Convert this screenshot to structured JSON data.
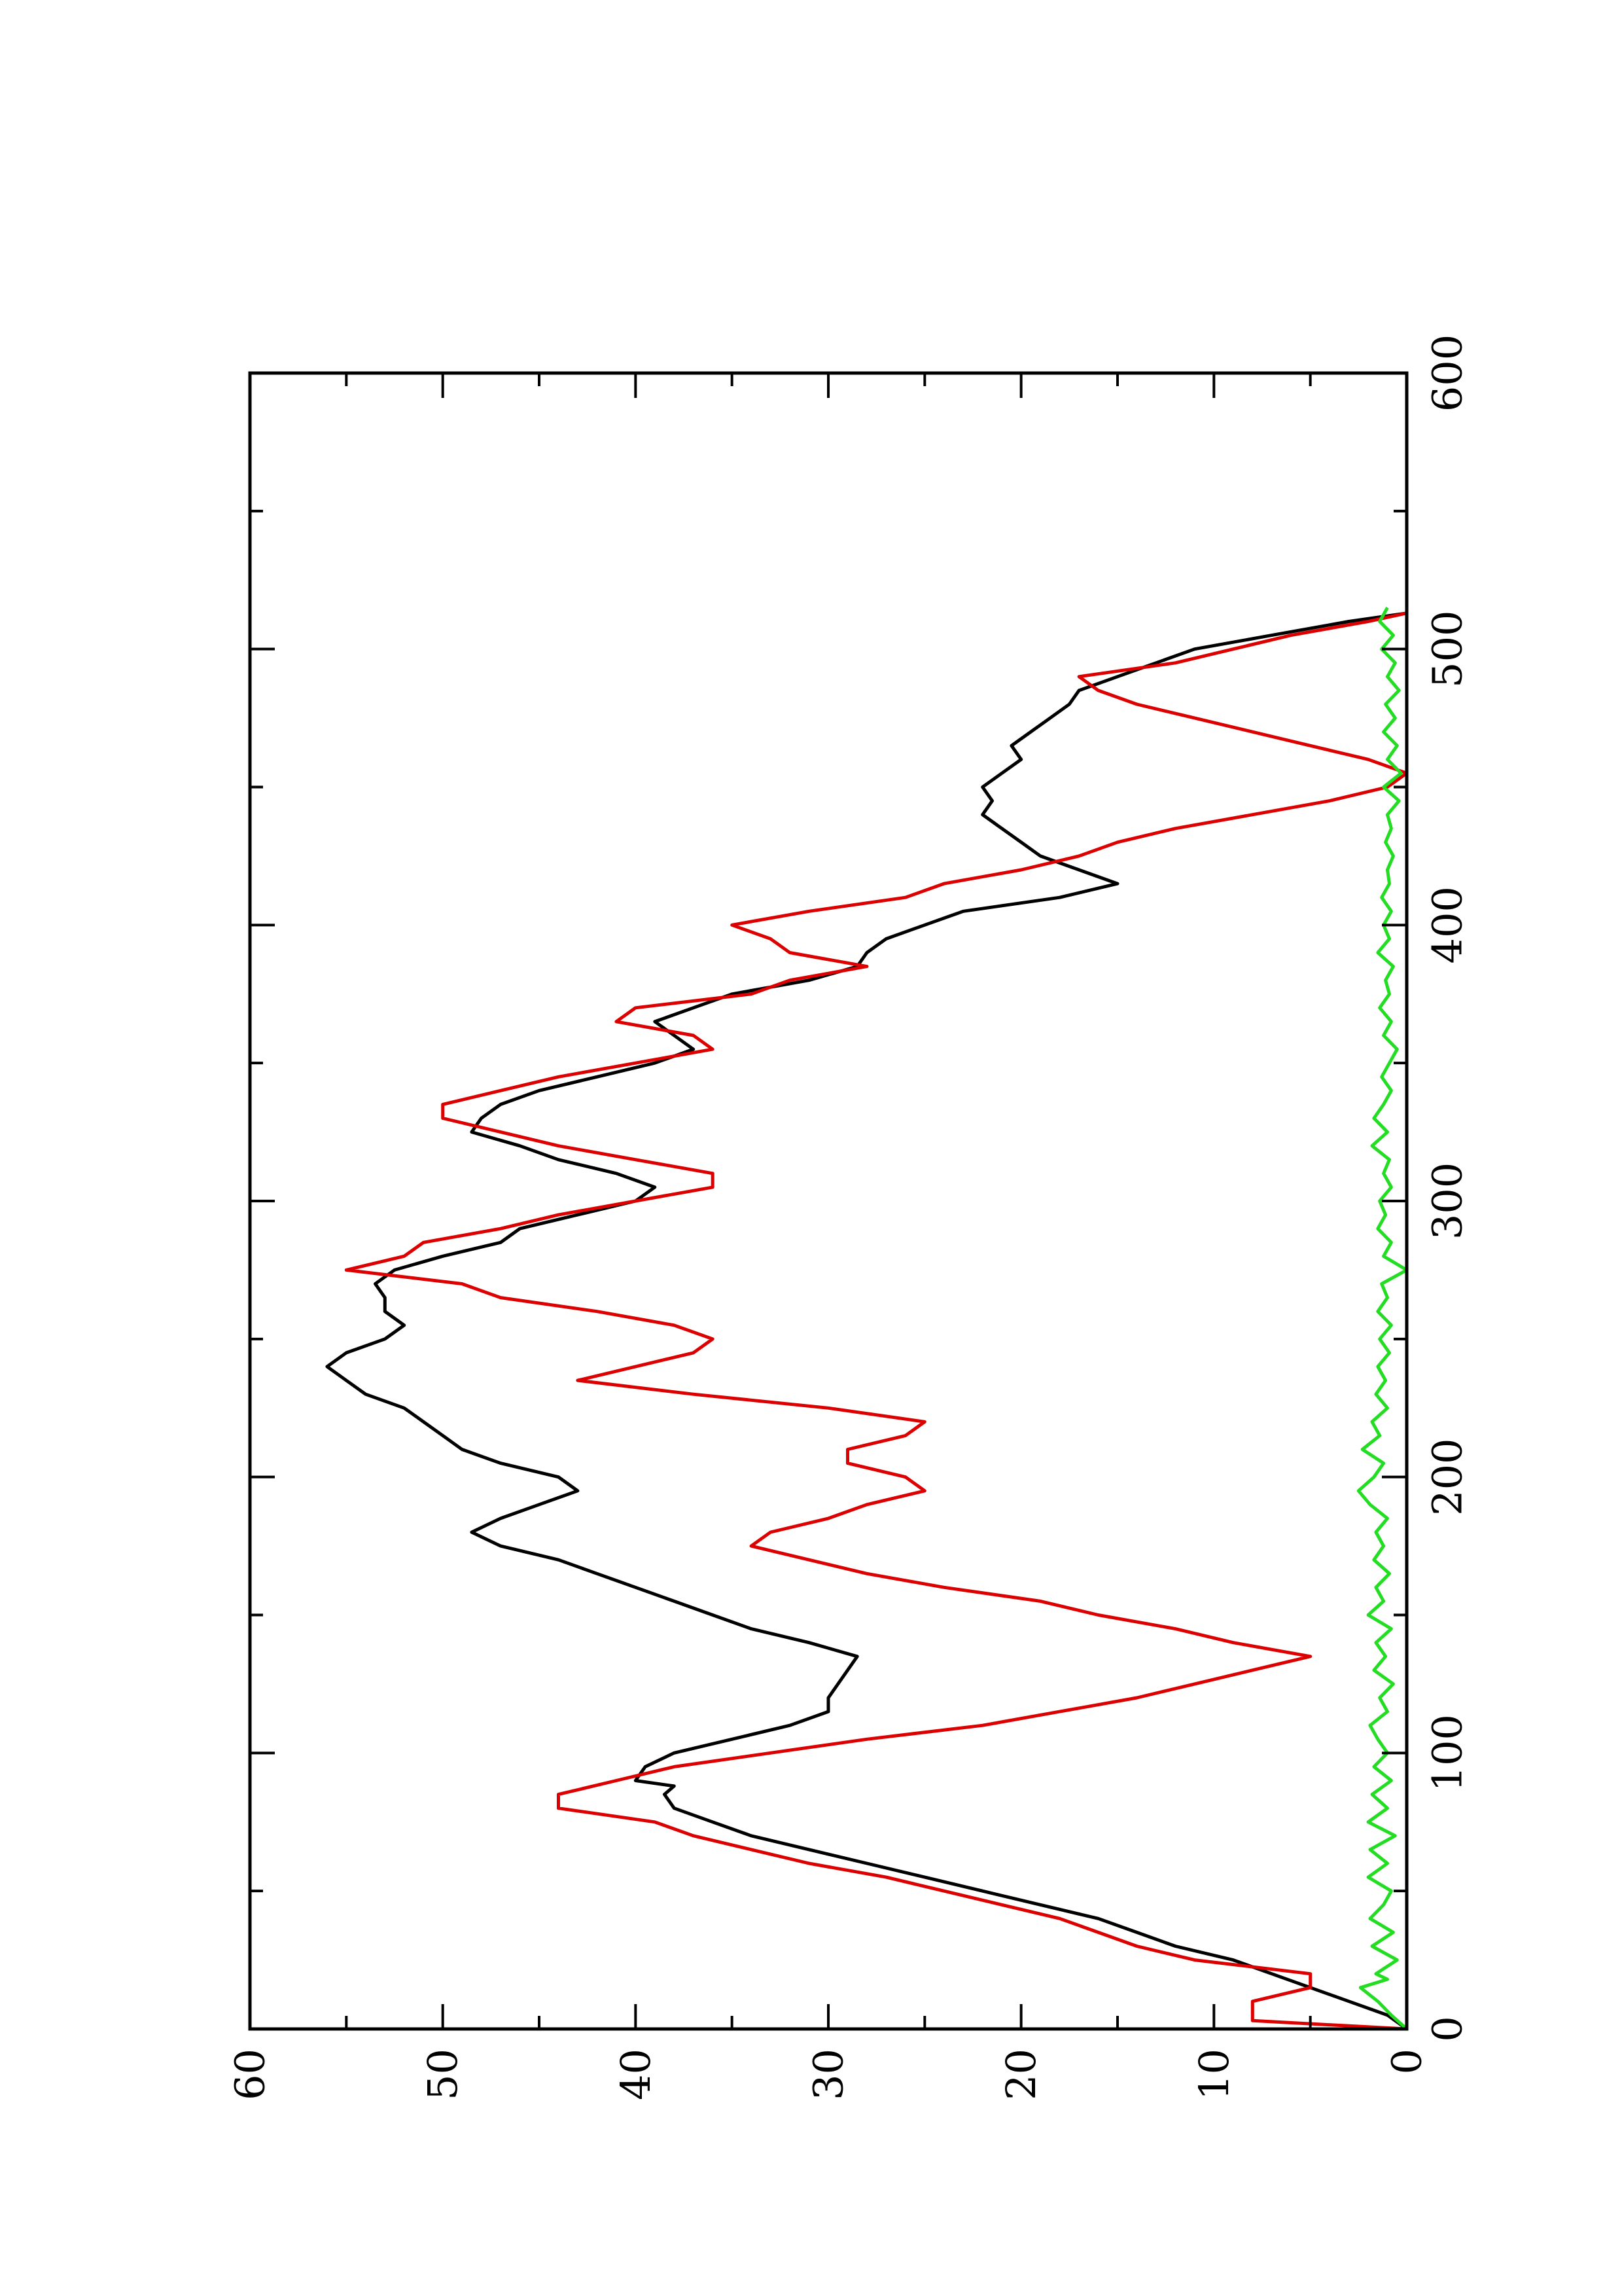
{
  "chart_data": {
    "type": "line",
    "rotated": "90deg-clockwise",
    "grid": false,
    "legend": "none",
    "xlim": [
      0,
      600
    ],
    "ylim": [
      0,
      60
    ],
    "x_major_ticks": [
      0,
      100,
      200,
      300,
      400,
      500,
      600
    ],
    "x_minor_ticks": [
      50,
      150,
      250,
      350,
      450,
      550
    ],
    "y_major_ticks": [
      0,
      10,
      20,
      30,
      40,
      50,
      60
    ],
    "y_minor_ticks": [
      5,
      15,
      25,
      35,
      45,
      55
    ],
    "x_tick_labels": [
      "0",
      "100",
      "200",
      "300",
      "400",
      "500",
      "600"
    ],
    "y_tick_labels": [
      "0",
      "10",
      "20",
      "30",
      "40",
      "50",
      "60"
    ],
    "series": [
      {
        "color": "#000000",
        "points": [
          [
            0,
            0
          ],
          [
            5,
            1
          ],
          [
            10,
            3
          ],
          [
            15,
            5
          ],
          [
            20,
            7
          ],
          [
            25,
            9
          ],
          [
            30,
            12
          ],
          [
            35,
            14
          ],
          [
            40,
            16
          ],
          [
            45,
            19
          ],
          [
            50,
            22
          ],
          [
            55,
            25
          ],
          [
            60,
            28
          ],
          [
            65,
            31
          ],
          [
            70,
            34
          ],
          [
            75,
            36
          ],
          [
            80,
            38
          ],
          [
            85,
            38.5
          ],
          [
            88,
            38
          ],
          [
            90,
            40
          ],
          [
            95,
            39.5
          ],
          [
            100,
            38
          ],
          [
            105,
            35
          ],
          [
            110,
            32
          ],
          [
            115,
            30
          ],
          [
            120,
            30
          ],
          [
            125,
            29.5
          ],
          [
            130,
            29
          ],
          [
            135,
            28.5
          ],
          [
            140,
            31
          ],
          [
            145,
            34
          ],
          [
            150,
            36
          ],
          [
            155,
            38
          ],
          [
            160,
            40
          ],
          [
            165,
            42
          ],
          [
            170,
            44
          ],
          [
            175,
            47
          ],
          [
            180,
            48.5
          ],
          [
            185,
            47
          ],
          [
            190,
            45
          ],
          [
            195,
            43
          ],
          [
            200,
            44
          ],
          [
            205,
            47
          ],
          [
            210,
            49
          ],
          [
            215,
            50
          ],
          [
            220,
            51
          ],
          [
            225,
            52
          ],
          [
            230,
            54
          ],
          [
            235,
            55
          ],
          [
            240,
            56
          ],
          [
            245,
            55
          ],
          [
            250,
            53
          ],
          [
            255,
            52
          ],
          [
            260,
            53
          ],
          [
            265,
            53
          ],
          [
            270,
            53.5
          ],
          [
            275,
            52.5
          ],
          [
            280,
            50
          ],
          [
            285,
            47
          ],
          [
            290,
            46
          ],
          [
            295,
            43
          ],
          [
            300,
            40
          ],
          [
            305,
            39
          ],
          [
            310,
            41
          ],
          [
            315,
            44
          ],
          [
            320,
            46
          ],
          [
            325,
            48.5
          ],
          [
            330,
            48
          ],
          [
            335,
            47
          ],
          [
            340,
            45
          ],
          [
            345,
            42
          ],
          [
            350,
            39
          ],
          [
            355,
            37
          ],
          [
            360,
            38
          ],
          [
            365,
            39
          ],
          [
            370,
            37
          ],
          [
            375,
            35
          ],
          [
            380,
            31
          ],
          [
            385,
            28.5
          ],
          [
            390,
            28
          ],
          [
            395,
            27
          ],
          [
            400,
            25
          ],
          [
            405,
            23
          ],
          [
            410,
            18
          ],
          [
            415,
            15
          ],
          [
            420,
            17
          ],
          [
            425,
            19
          ],
          [
            430,
            20
          ],
          [
            435,
            21
          ],
          [
            440,
            22
          ],
          [
            445,
            21.5
          ],
          [
            450,
            22
          ],
          [
            455,
            21
          ],
          [
            460,
            20
          ],
          [
            465,
            20.5
          ],
          [
            470,
            19.5
          ],
          [
            475,
            18.5
          ],
          [
            480,
            17.5
          ],
          [
            485,
            17
          ],
          [
            490,
            15
          ],
          [
            495,
            13
          ],
          [
            500,
            11
          ],
          [
            505,
            7
          ],
          [
            510,
            3
          ],
          [
            513,
            0
          ]
        ]
      },
      {
        "color": "#dd0000",
        "points": [
          [
            0,
            0
          ],
          [
            3,
            8
          ],
          [
            10,
            8
          ],
          [
            15,
            5
          ],
          [
            20,
            5
          ],
          [
            25,
            11
          ],
          [
            30,
            14
          ],
          [
            35,
            16
          ],
          [
            40,
            18
          ],
          [
            45,
            21
          ],
          [
            50,
            24
          ],
          [
            55,
            27
          ],
          [
            60,
            31
          ],
          [
            65,
            34
          ],
          [
            70,
            37
          ],
          [
            75,
            39
          ],
          [
            80,
            44
          ],
          [
            85,
            44
          ],
          [
            90,
            41
          ],
          [
            95,
            38
          ],
          [
            100,
            33
          ],
          [
            105,
            28
          ],
          [
            110,
            22
          ],
          [
            115,
            18
          ],
          [
            120,
            14
          ],
          [
            125,
            11
          ],
          [
            130,
            8
          ],
          [
            135,
            5
          ],
          [
            140,
            9
          ],
          [
            145,
            12
          ],
          [
            150,
            16
          ],
          [
            155,
            19
          ],
          [
            160,
            24
          ],
          [
            165,
            28
          ],
          [
            170,
            31
          ],
          [
            175,
            34
          ],
          [
            180,
            33
          ],
          [
            185,
            30
          ],
          [
            190,
            28
          ],
          [
            195,
            25
          ],
          [
            200,
            26
          ],
          [
            205,
            29
          ],
          [
            210,
            29
          ],
          [
            215,
            26
          ],
          [
            220,
            25
          ],
          [
            225,
            30
          ],
          [
            230,
            37
          ],
          [
            235,
            43
          ],
          [
            245,
            37
          ],
          [
            250,
            36
          ],
          [
            255,
            38
          ],
          [
            260,
            42
          ],
          [
            265,
            47
          ],
          [
            270,
            49
          ],
          [
            275,
            55
          ],
          [
            280,
            52
          ],
          [
            285,
            51
          ],
          [
            290,
            47
          ],
          [
            295,
            44
          ],
          [
            300,
            40
          ],
          [
            305,
            36
          ],
          [
            310,
            36
          ],
          [
            315,
            40
          ],
          [
            320,
            44
          ],
          [
            325,
            47
          ],
          [
            330,
            50
          ],
          [
            335,
            50
          ],
          [
            340,
            47
          ],
          [
            345,
            44
          ],
          [
            350,
            40
          ],
          [
            355,
            36
          ],
          [
            360,
            37
          ],
          [
            365,
            41
          ],
          [
            370,
            40
          ],
          [
            375,
            34
          ],
          [
            380,
            32
          ],
          [
            385,
            28
          ],
          [
            390,
            32
          ],
          [
            395,
            33
          ],
          [
            400,
            35
          ],
          [
            405,
            31
          ],
          [
            410,
            26
          ],
          [
            415,
            24
          ],
          [
            420,
            20
          ],
          [
            425,
            17
          ],
          [
            430,
            15
          ],
          [
            435,
            12
          ],
          [
            440,
            8
          ],
          [
            445,
            4
          ],
          [
            450,
            1
          ],
          [
            455,
            0
          ],
          [
            460,
            2
          ],
          [
            465,
            5
          ],
          [
            470,
            8
          ],
          [
            475,
            11
          ],
          [
            480,
            14
          ],
          [
            485,
            16
          ],
          [
            490,
            17
          ],
          [
            495,
            12
          ],
          [
            500,
            9
          ],
          [
            505,
            6
          ],
          [
            510,
            2
          ],
          [
            513,
            0
          ]
        ]
      },
      {
        "color": "#22dd22",
        "points": [
          [
            0,
            0
          ],
          [
            5,
            0.8
          ],
          [
            10,
            1.5
          ],
          [
            15,
            2.4
          ],
          [
            18,
            1
          ],
          [
            20,
            1.6
          ],
          [
            25,
            0.5
          ],
          [
            30,
            1.8
          ],
          [
            35,
            0.7
          ],
          [
            40,
            1.9
          ],
          [
            45,
            1.2
          ],
          [
            50,
            0.8
          ],
          [
            55,
            2
          ],
          [
            60,
            1
          ],
          [
            65,
            1.9
          ],
          [
            70,
            0.6
          ],
          [
            75,
            2
          ],
          [
            80,
            1
          ],
          [
            85,
            1.8
          ],
          [
            90,
            0.8
          ],
          [
            95,
            1.7
          ],
          [
            100,
            1
          ],
          [
            105,
            1.5
          ],
          [
            110,
            1.9
          ],
          [
            115,
            1
          ],
          [
            120,
            1.4
          ],
          [
            125,
            0.7
          ],
          [
            130,
            1.7
          ],
          [
            135,
            1.1
          ],
          [
            140,
            1.6
          ],
          [
            145,
            0.8
          ],
          [
            150,
            2
          ],
          [
            155,
            1.2
          ],
          [
            160,
            1.6
          ],
          [
            165,
            0.9
          ],
          [
            170,
            1.7
          ],
          [
            175,
            1.2
          ],
          [
            180,
            1.6
          ],
          [
            185,
            1
          ],
          [
            190,
            1.9
          ],
          [
            195,
            2.5
          ],
          [
            200,
            1.7
          ],
          [
            205,
            1.2
          ],
          [
            210,
            2.3
          ],
          [
            215,
            1.4
          ],
          [
            220,
            1.8
          ],
          [
            225,
            1
          ],
          [
            230,
            1.6
          ],
          [
            235,
            1.1
          ],
          [
            240,
            1.5
          ],
          [
            245,
            0.9
          ],
          [
            250,
            1.4
          ],
          [
            255,
            0.8
          ],
          [
            260,
            1.5
          ],
          [
            265,
            1
          ],
          [
            270,
            1.3
          ],
          [
            275,
            0
          ],
          [
            280,
            1.2
          ],
          [
            285,
            0.8
          ],
          [
            290,
            1.5
          ],
          [
            295,
            1.1
          ],
          [
            300,
            1.4
          ],
          [
            305,
            0.8
          ],
          [
            310,
            1.2
          ],
          [
            315,
            0.9
          ],
          [
            320,
            1.8
          ],
          [
            325,
            1
          ],
          [
            330,
            1.7
          ],
          [
            335,
            1.2
          ],
          [
            340,
            0.8
          ],
          [
            345,
            1.3
          ],
          [
            350,
            0.9
          ],
          [
            355,
            0.5
          ],
          [
            360,
            1.2
          ],
          [
            365,
            0.8
          ],
          [
            370,
            1.4
          ],
          [
            375,
            0.9
          ],
          [
            380,
            1.1
          ],
          [
            385,
            0.7
          ],
          [
            390,
            1.5
          ],
          [
            395,
            0.9
          ],
          [
            400,
            1.2
          ],
          [
            405,
            0.8
          ],
          [
            410,
            1.3
          ],
          [
            415,
            0.9
          ],
          [
            420,
            1
          ],
          [
            425,
            0.7
          ],
          [
            430,
            1.1
          ],
          [
            435,
            0.8
          ],
          [
            440,
            1
          ],
          [
            445,
            0.4
          ],
          [
            450,
            1.2
          ],
          [
            455,
            0.3
          ],
          [
            460,
            1
          ],
          [
            465,
            0.5
          ],
          [
            470,
            1.2
          ],
          [
            475,
            0.6
          ],
          [
            480,
            1.1
          ],
          [
            485,
            0.4
          ],
          [
            490,
            1
          ],
          [
            495,
            0.6
          ],
          [
            500,
            1.3
          ],
          [
            505,
            0.7
          ],
          [
            510,
            1.4
          ],
          [
            515,
            1
          ]
        ]
      }
    ]
  }
}
